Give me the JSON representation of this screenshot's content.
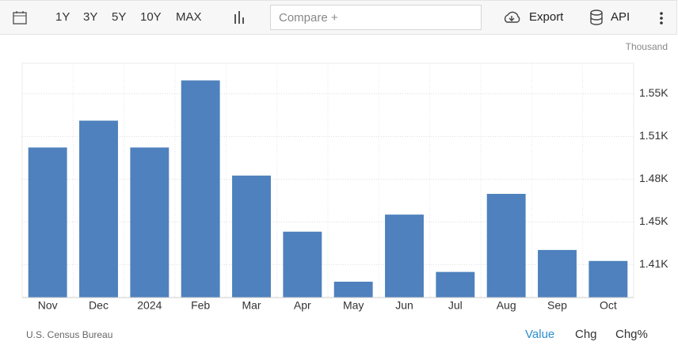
{
  "toolbar": {
    "ranges": [
      "1Y",
      "3Y",
      "5Y",
      "10Y",
      "MAX"
    ],
    "compare": "Compare +",
    "export": "Export",
    "api": "API"
  },
  "chart_data": {
    "type": "bar",
    "unit": "Thousand",
    "categories": [
      "Nov",
      "Dec",
      "2024",
      "Feb",
      "Mar",
      "Apr",
      "May",
      "Jun",
      "Jul",
      "Aug",
      "Sep",
      "Oct"
    ],
    "values": [
      1506,
      1528,
      1506,
      1561,
      1483,
      1437,
      1396,
      1451,
      1404,
      1468,
      1422,
      1413
    ],
    "color": "#4e81bd",
    "ylim": [
      1383,
      1575
    ],
    "yticks": [
      {
        "value": 1410,
        "label": "1.41K"
      },
      {
        "value": 1445,
        "label": "1.45K"
      },
      {
        "value": 1480,
        "label": "1.48K"
      },
      {
        "value": 1515,
        "label": "1.51K"
      },
      {
        "value": 1550,
        "label": "1.55K"
      }
    ],
    "grid": true
  },
  "footer": {
    "source": "U.S. Census Bureau",
    "views": [
      "Value",
      "Chg",
      "Chg%"
    ]
  }
}
